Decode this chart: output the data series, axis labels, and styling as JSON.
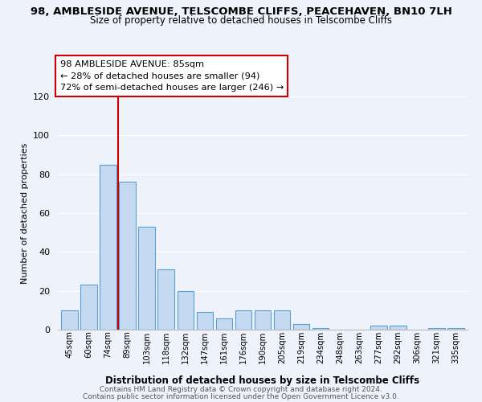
{
  "title": "98, AMBLESIDE AVENUE, TELSCOMBE CLIFFS, PEACEHAVEN, BN10 7LH",
  "subtitle": "Size of property relative to detached houses in Telscombe Cliffs",
  "xlabel": "Distribution of detached houses by size in Telscombe Cliffs",
  "ylabel": "Number of detached properties",
  "bar_labels": [
    "45sqm",
    "60sqm",
    "74sqm",
    "89sqm",
    "103sqm",
    "118sqm",
    "132sqm",
    "147sqm",
    "161sqm",
    "176sqm",
    "190sqm",
    "205sqm",
    "219sqm",
    "234sqm",
    "248sqm",
    "263sqm",
    "277sqm",
    "292sqm",
    "306sqm",
    "321sqm",
    "335sqm"
  ],
  "bar_values": [
    10,
    23,
    85,
    76,
    53,
    31,
    20,
    9,
    6,
    10,
    10,
    10,
    3,
    1,
    0,
    0,
    2,
    2,
    0,
    1,
    1
  ],
  "bar_color": "#c5d9f0",
  "bar_edge_color": "#5a9fd4",
  "vline_x": 2.5,
  "vline_color": "#cc0000",
  "ylim": [
    0,
    120
  ],
  "yticks": [
    0,
    20,
    40,
    60,
    80,
    100,
    120
  ],
  "annotation_title": "98 AMBLESIDE AVENUE: 85sqm",
  "annotation_line1": "← 28% of detached houses are smaller (94)",
  "annotation_line2": "72% of semi-detached houses are larger (246) →",
  "annotation_box_color": "#ffffff",
  "annotation_box_edge": "#cc0000",
  "footer_line1": "Contains HM Land Registry data © Crown copyright and database right 2024.",
  "footer_line2": "Contains public sector information licensed under the Open Government Licence v3.0.",
  "background_color": "#eef2fa"
}
